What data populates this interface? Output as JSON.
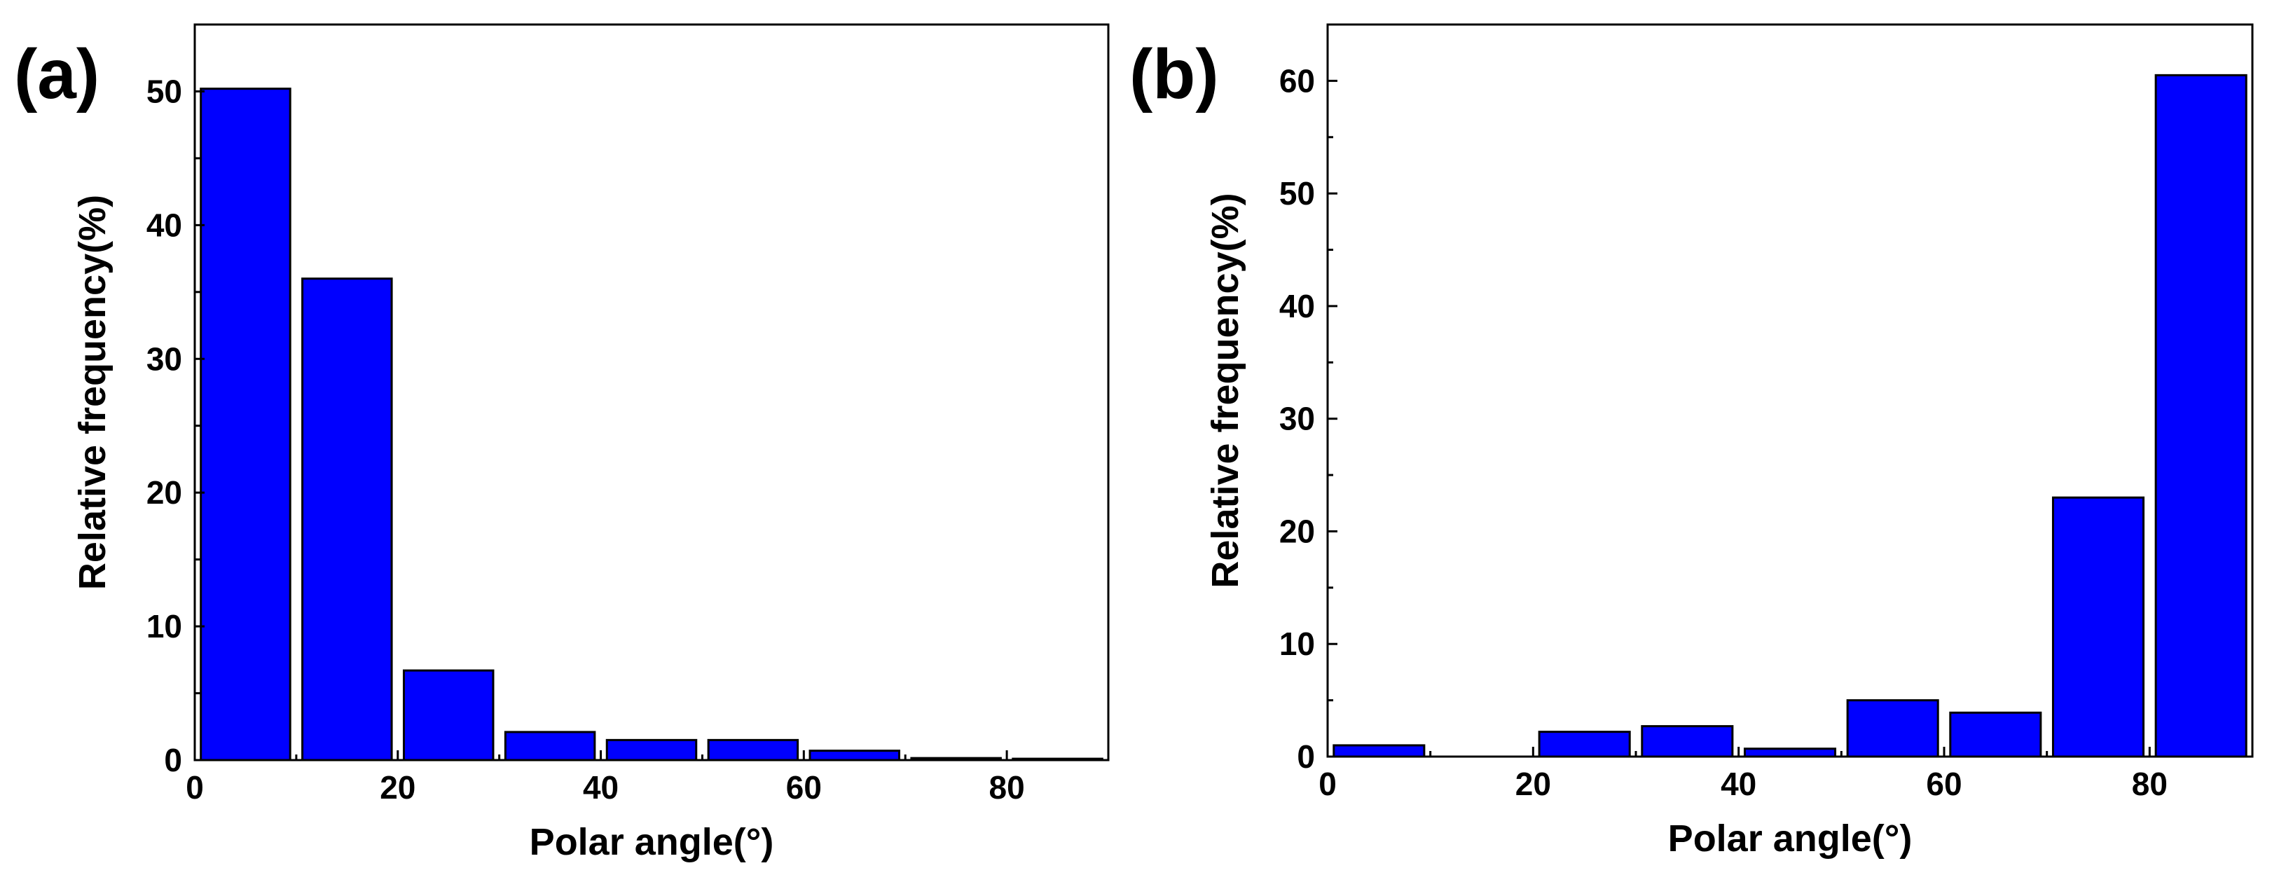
{
  "colors": {
    "bar_fill": "#0000FF",
    "bar_stroke": "#000000",
    "axis": "#000000",
    "background": "#FFFFFF"
  },
  "chart_data": [
    {
      "type": "bar",
      "panel_label": "(a)",
      "xlabel": "Polar angle(°)",
      "ylabel": "Relative frequency(%)",
      "xlim": [
        0,
        90
      ],
      "ylim": [
        0,
        55
      ],
      "xticks": [
        0,
        20,
        40,
        60,
        80
      ],
      "yticks": [
        0,
        10,
        20,
        30,
        40,
        50
      ],
      "grid": false,
      "categories": [
        "0-10",
        "10-20",
        "20-30",
        "30-40",
        "40-50",
        "50-60",
        "60-70",
        "70-80",
        "80-90"
      ],
      "bin_edges": [
        0,
        10,
        20,
        30,
        40,
        50,
        60,
        70,
        80,
        90
      ],
      "values": [
        50.2,
        36.0,
        6.7,
        2.1,
        1.5,
        1.5,
        0.7,
        0.15,
        0.1
      ]
    },
    {
      "type": "bar",
      "panel_label": "(b)",
      "xlabel": "Polar angle(°)",
      "ylabel": "Relative frequency(%)",
      "xlim": [
        0,
        90
      ],
      "ylim": [
        0,
        65
      ],
      "xticks": [
        0,
        20,
        40,
        60,
        80
      ],
      "yticks": [
        0,
        10,
        20,
        30,
        40,
        50,
        60
      ],
      "grid": false,
      "categories": [
        "0-10",
        "10-20",
        "20-30",
        "30-40",
        "40-50",
        "50-60",
        "60-70",
        "70-80",
        "80-90"
      ],
      "bin_edges": [
        0,
        10,
        20,
        30,
        40,
        50,
        60,
        70,
        80,
        90
      ],
      "values": [
        1.0,
        0.0,
        2.2,
        2.7,
        0.7,
        5.0,
        3.9,
        23.0,
        60.5
      ]
    }
  ]
}
